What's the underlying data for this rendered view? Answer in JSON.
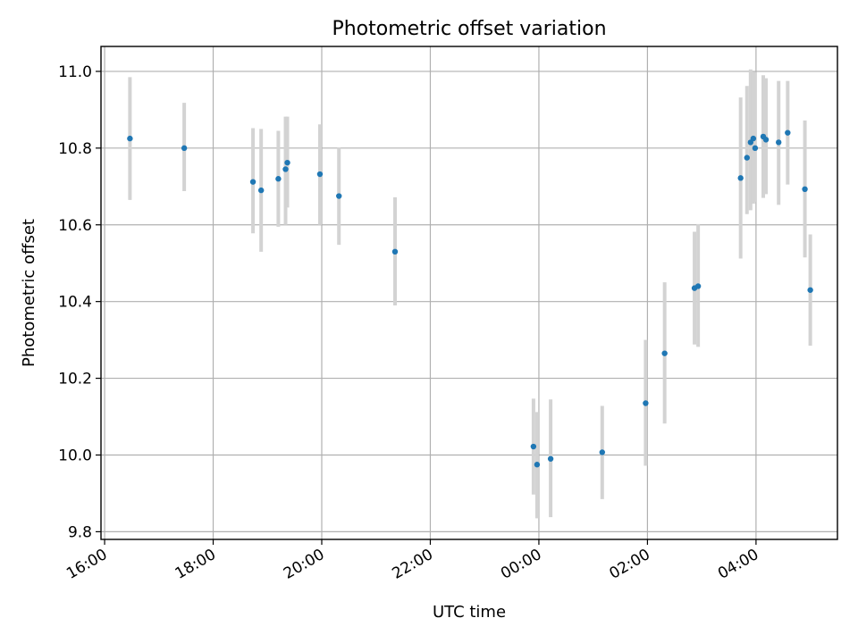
{
  "chart_data": {
    "type": "scatter",
    "title": "Photometric offset variation",
    "xlabel": "UTC time",
    "ylabel": "Photometric offset",
    "x_axis": "time",
    "xlim": [
      "15:56",
      "05:30"
    ],
    "ylim": [
      9.78,
      11.065
    ],
    "x_ticks": [
      {
        "label": "16:00",
        "time": "16:00"
      },
      {
        "label": "18:00",
        "time": "18:00"
      },
      {
        "label": "20:00",
        "time": "20:00"
      },
      {
        "label": "22:00",
        "time": "22:00"
      },
      {
        "label": "00:00",
        "time": "00:00"
      },
      {
        "label": "02:00",
        "time": "02:00"
      },
      {
        "label": "04:00",
        "time": "04:00"
      }
    ],
    "y_ticks": [
      {
        "label": "9.8",
        "value": 9.8
      },
      {
        "label": "10.0",
        "value": 10.0
      },
      {
        "label": "10.2",
        "value": 10.2
      },
      {
        "label": "10.4",
        "value": 10.4
      },
      {
        "label": "10.6",
        "value": 10.6
      },
      {
        "label": "10.8",
        "value": 10.8
      },
      {
        "label": "11.0",
        "value": 11.0
      }
    ],
    "grid": true,
    "marker_color": "#1f77b4",
    "errorbar_color": "#d3d3d3",
    "points": [
      {
        "time": "16:28",
        "y": 10.825,
        "ylow": 10.665,
        "yhigh": 10.985
      },
      {
        "time": "17:28",
        "y": 10.8,
        "ylow": 10.688,
        "yhigh": 10.918
      },
      {
        "time": "18:44",
        "y": 10.712,
        "ylow": 10.578,
        "yhigh": 10.852
      },
      {
        "time": "18:53",
        "y": 10.69,
        "ylow": 10.53,
        "yhigh": 10.85
      },
      {
        "time": "19:12",
        "y": 10.72,
        "ylow": 10.595,
        "yhigh": 10.845
      },
      {
        "time": "19:20",
        "y": 10.745,
        "ylow": 10.6,
        "yhigh": 10.882
      },
      {
        "time": "19:22",
        "y": 10.762,
        "ylow": 10.645,
        "yhigh": 10.882
      },
      {
        "time": "19:58",
        "y": 10.732,
        "ylow": 10.6,
        "yhigh": 10.862
      },
      {
        "time": "20:19",
        "y": 10.675,
        "ylow": 10.548,
        "yhigh": 10.802
      },
      {
        "time": "21:21",
        "y": 10.53,
        "ylow": 10.39,
        "yhigh": 10.672
      },
      {
        "time": "23:54",
        "y": 10.022,
        "ylow": 9.897,
        "yhigh": 10.147
      },
      {
        "time": "23:58",
        "y": 9.975,
        "ylow": 9.835,
        "yhigh": 10.112
      },
      {
        "time": "00:13",
        "y": 9.99,
        "ylow": 9.838,
        "yhigh": 10.145
      },
      {
        "time": "01:10",
        "y": 10.007,
        "ylow": 9.885,
        "yhigh": 10.128
      },
      {
        "time": "01:58",
        "y": 10.135,
        "ylow": 9.972,
        "yhigh": 10.3
      },
      {
        "time": "02:19",
        "y": 10.265,
        "ylow": 10.082,
        "yhigh": 10.45
      },
      {
        "time": "02:52",
        "y": 10.435,
        "ylow": 10.288,
        "yhigh": 10.582
      },
      {
        "time": "02:56",
        "y": 10.44,
        "ylow": 10.282,
        "yhigh": 10.602
      },
      {
        "time": "03:43",
        "y": 10.722,
        "ylow": 10.512,
        "yhigh": 10.932
      },
      {
        "time": "03:50",
        "y": 10.775,
        "ylow": 10.628,
        "yhigh": 10.962
      },
      {
        "time": "03:54",
        "y": 10.815,
        "ylow": 10.638,
        "yhigh": 11.005
      },
      {
        "time": "03:57",
        "y": 10.825,
        "ylow": 10.655,
        "yhigh": 10.998
      },
      {
        "time": "03:59",
        "y": 10.8,
        "ylow": 10.66,
        "yhigh": 10.998
      },
      {
        "time": "04:08",
        "y": 10.83,
        "ylow": 10.67,
        "yhigh": 10.99
      },
      {
        "time": "04:11",
        "y": 10.822,
        "ylow": 10.68,
        "yhigh": 10.982
      },
      {
        "time": "04:25",
        "y": 10.815,
        "ylow": 10.652,
        "yhigh": 10.975
      },
      {
        "time": "04:35",
        "y": 10.84,
        "ylow": 10.705,
        "yhigh": 10.975
      },
      {
        "time": "04:54",
        "y": 10.693,
        "ylow": 10.515,
        "yhigh": 10.872
      },
      {
        "time": "05:00",
        "y": 10.43,
        "ylow": 10.285,
        "yhigh": 10.575
      }
    ]
  }
}
